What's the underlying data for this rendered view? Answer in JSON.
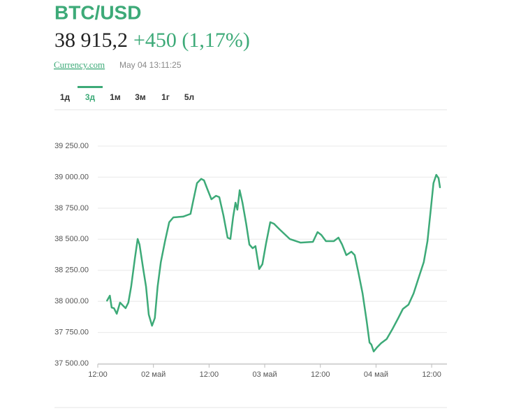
{
  "header": {
    "title": "BTC/USD",
    "price": "38 915,2",
    "change": "+450 (1,17%)",
    "source": "Currency.com",
    "timestamp": "May 04 13:11:25"
  },
  "tabs": {
    "items": [
      "1д",
      "3д",
      "1м",
      "3м",
      "1г",
      "5л"
    ],
    "active": 1
  },
  "chart_data": {
    "type": "line",
    "x": [
      2.0,
      2.6,
      3.0,
      3.5,
      4.1,
      4.8,
      5.4,
      6.0,
      6.6,
      7.2,
      8.0,
      8.6,
      9.0,
      9.8,
      10.4,
      11.0,
      11.7,
      12.3,
      12.9,
      13.6,
      14.5,
      15.4,
      16.3,
      18.4,
      20.0,
      20.5,
      21.4,
      22.3,
      22.9,
      23.6,
      24.5,
      25.5,
      26.2,
      27.1,
      28.0,
      28.6,
      29.2,
      29.7,
      30.1,
      30.6,
      31.2,
      32.0,
      32.7,
      33.4,
      34.0,
      34.8,
      35.5,
      36.3,
      37.2,
      38.0,
      39.2,
      41.4,
      43.7,
      46.4,
      47.4,
      48.2,
      49.2,
      50.9,
      51.9,
      52.7,
      53.6,
      54.7,
      55.4,
      56.2,
      57.1,
      58.0,
      58.6,
      59.0,
      59.5,
      60.2,
      61.1,
      62.3,
      63.6,
      64.8,
      65.8,
      67.0,
      68.1,
      69.3,
      70.3,
      71.1,
      71.8,
      72.4,
      73.0,
      73.5,
      73.8
    ],
    "series": [
      {
        "color": "#3daa78",
        "values": [
          38006,
          38046,
          37950,
          37945,
          37900,
          37990,
          37967,
          37945,
          37990,
          38119,
          38344,
          38502,
          38457,
          38260,
          38119,
          37894,
          37804,
          37866,
          38119,
          38316,
          38485,
          38637,
          38676,
          38682,
          38704,
          38794,
          38952,
          38986,
          38974,
          38907,
          38822,
          38850,
          38839,
          38693,
          38513,
          38502,
          38682,
          38794,
          38738,
          38895,
          38794,
          38625,
          38457,
          38428,
          38445,
          38260,
          38299,
          38468,
          38637,
          38625,
          38580,
          38502,
          38473,
          38479,
          38558,
          38535,
          38485,
          38485,
          38513,
          38457,
          38372,
          38400,
          38372,
          38232,
          38063,
          37838,
          37669,
          37652,
          37596,
          37629,
          37663,
          37697,
          37781,
          37866,
          37939,
          37973,
          38063,
          38203,
          38316,
          38485,
          38738,
          38952,
          39019,
          38991,
          38918
        ]
      }
    ],
    "xlim": [
      0,
      75.3
    ],
    "xticks": [
      {
        "value": 0,
        "label": "12:00"
      },
      {
        "value": 12,
        "label": "02 май"
      },
      {
        "value": 24,
        "label": "12:00"
      },
      {
        "value": 36,
        "label": "03 май"
      },
      {
        "value": 48,
        "label": "12:00"
      },
      {
        "value": 60,
        "label": "04 май"
      },
      {
        "value": 72,
        "label": "12:00"
      }
    ],
    "ylim": [
      37500,
      39250
    ],
    "yticks": [
      {
        "value": 37500,
        "label": "37 500.00"
      },
      {
        "value": 37750,
        "label": "37 750.00"
      },
      {
        "value": 38000,
        "label": "38 000.00"
      },
      {
        "value": 38250,
        "label": "38 250.00"
      },
      {
        "value": 38500,
        "label": "38 500.00"
      },
      {
        "value": 38750,
        "label": "38 750.00"
      },
      {
        "value": 39000,
        "label": "39 000.00"
      },
      {
        "value": 39250,
        "label": "39 250.00"
      }
    ],
    "grid": true
  }
}
